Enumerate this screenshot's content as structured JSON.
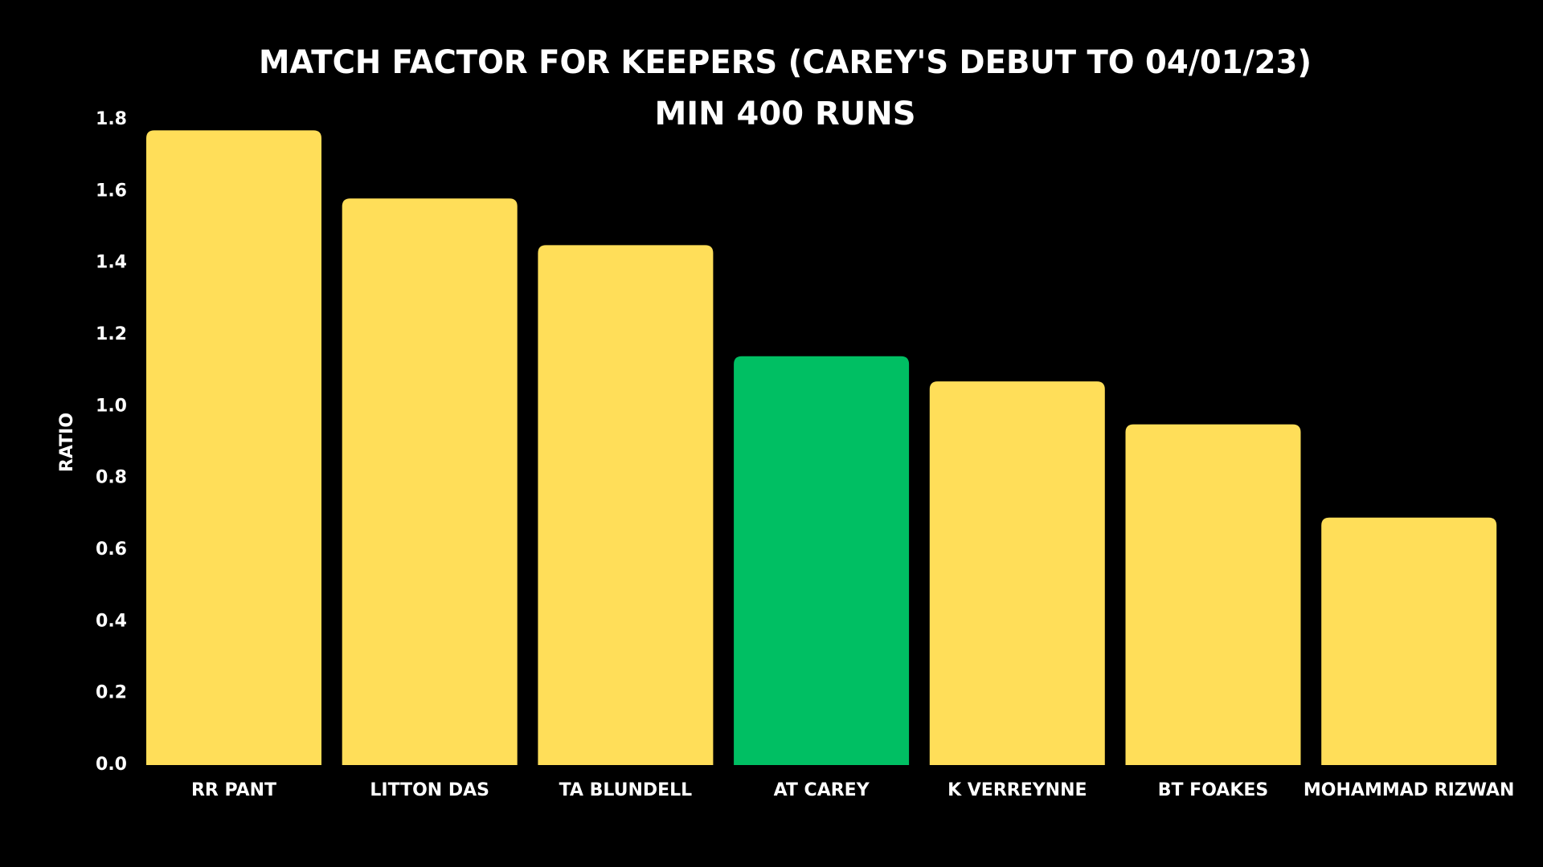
{
  "chart_data": {
    "type": "bar",
    "title": "MATCH FACTOR FOR KEEPERS (CAREY'S DEBUT TO 04/01/23)",
    "subtitle": "MIN 400 RUNS",
    "y_label": "RATIO",
    "categories": [
      "RR PANT",
      "LITTON DAS",
      "TA BLUNDELL",
      "AT CAREY",
      "K VERREYNNE",
      "BT FOAKES",
      "MOHAMMAD RIZWAN"
    ],
    "values": [
      1.77,
      1.58,
      1.45,
      1.14,
      1.07,
      0.95,
      0.69
    ],
    "colors": [
      "#FFDE59",
      "#FFDE59",
      "#FFDE59",
      "#00BF63",
      "#FFDE59",
      "#FFDE59",
      "#FFDE59"
    ],
    "ylim": [
      0,
      1.8
    ],
    "yticks": [
      {
        "value": 0,
        "label": "0.0"
      },
      0.2,
      0.4,
      0.6,
      0.8,
      {
        "value": 1,
        "label": "1.0"
      },
      1.2,
      1.4,
      1.6,
      1.8
    ],
    "grid": false
  }
}
